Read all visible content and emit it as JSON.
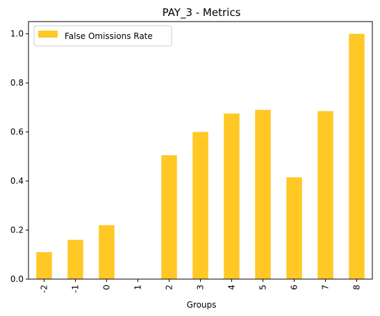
{
  "chart_data": {
    "type": "bar",
    "title": "PAY_3 - Metrics",
    "xlabel": "Groups",
    "ylabel": "",
    "categories": [
      "-2",
      "-1",
      "0",
      "1",
      "2",
      "3",
      "4",
      "5",
      "6",
      "7",
      "8"
    ],
    "series": [
      {
        "name": "False Omissions Rate",
        "values": [
          0.11,
          0.16,
          0.22,
          0.0,
          0.505,
          0.6,
          0.675,
          0.69,
          0.415,
          0.685,
          1.0
        ],
        "color": "#ffc825"
      }
    ],
    "ylim": [
      0,
      1.05
    ],
    "yticks": [
      0.0,
      0.2,
      0.4,
      0.6,
      0.8,
      1.0
    ],
    "ytick_labels": [
      "0.0",
      "0.2",
      "0.4",
      "0.6",
      "0.8",
      "1.0"
    ],
    "xtick_rotation": 90,
    "grid": false,
    "legend_position": "top-left"
  }
}
